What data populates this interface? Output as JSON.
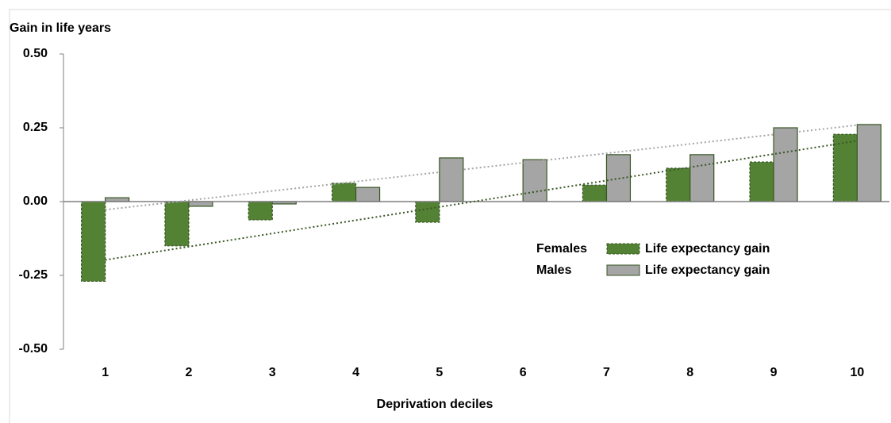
{
  "chart_data": {
    "type": "bar",
    "y_label": "Gain in life years",
    "x_label": "Deprivation deciles",
    "categories": [
      "1",
      "2",
      "3",
      "4",
      "5",
      "6",
      "7",
      "8",
      "9",
      "10"
    ],
    "series": [
      {
        "label": "Females",
        "name": "Life expectancy gain",
        "color": "#548235",
        "border": "#375623",
        "dashed": true,
        "trendline": true,
        "trend_color": "#375623",
        "values": [
          -0.27,
          -0.15,
          -0.062,
          0.062,
          -0.07,
          0,
          0.056,
          0.113,
          0.134,
          0.228
        ]
      },
      {
        "label": "Males",
        "name": "Life expectancy gain",
        "color": "#a5a5a5",
        "border": "#375623",
        "dashed": false,
        "trendline": true,
        "trend_color": "#a5a5a5",
        "values": [
          0.013,
          -0.016,
          -0.008,
          0.048,
          0.148,
          0.142,
          0.159,
          0.159,
          0.25,
          0.261
        ]
      }
    ],
    "ylim": [
      -0.5,
      0.5
    ],
    "yticks": [
      {
        "value": -0.5,
        "label": "-0.50"
      },
      {
        "value": -0.25,
        "label": "-0.25"
      },
      {
        "value": 0,
        "label": "0.00"
      },
      {
        "value": 0.25,
        "label": "0.25"
      },
      {
        "value": 0.5,
        "label": "0.50"
      }
    ],
    "grid": false
  }
}
